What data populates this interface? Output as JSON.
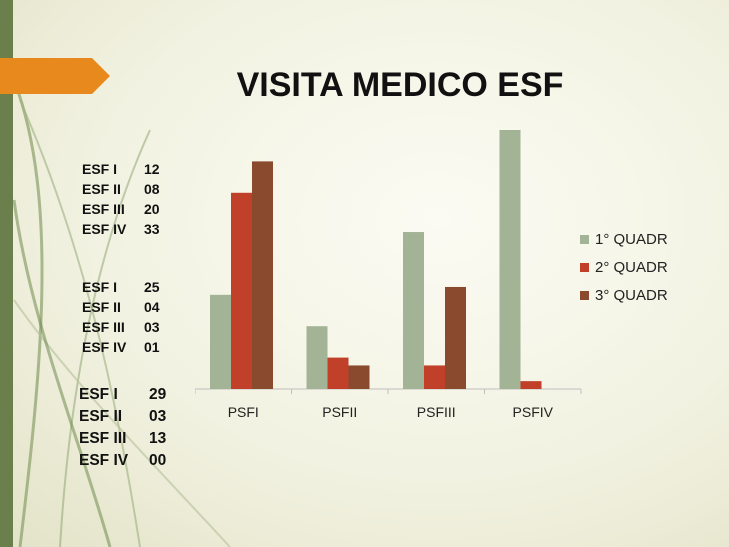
{
  "slide": {
    "title": "VISITA MEDICO ESF",
    "accent_color": "#e8891d",
    "bar_color": "#6b7f4d"
  },
  "stat_groups": [
    [
      {
        "label": "ESF I",
        "value": "12"
      },
      {
        "label": "ESF II",
        "value": "08"
      },
      {
        "label": "ESF III",
        "value": "20"
      },
      {
        "label": "ESF IV",
        "value": "33"
      }
    ],
    [
      {
        "label": "ESF I",
        "value": "25"
      },
      {
        "label": "ESF II",
        "value": "04"
      },
      {
        "label": "ESF III",
        "value": "03"
      },
      {
        "label": "ESF IV",
        "value": "01"
      }
    ],
    [
      {
        "label": "ESF I",
        "value": "29"
      },
      {
        "label": "ESF II",
        "value": "03"
      },
      {
        "label": "ESF III",
        "value": "13"
      },
      {
        "label": "ESF IV",
        "value": "00"
      }
    ]
  ],
  "chart_data": {
    "type": "bar",
    "title": "",
    "categories": [
      "PSFI",
      "PSFII",
      "PSFIII",
      "PSFIV"
    ],
    "series": [
      {
        "name": "1° QUADR",
        "color": "#a3b395",
        "values": [
          12,
          8,
          20,
          33
        ]
      },
      {
        "name": "2° QUADR",
        "color": "#c0402a",
        "values": [
          25,
          4,
          3,
          1
        ]
      },
      {
        "name": "3° QUADR",
        "color": "#8a4a2d",
        "values": [
          29,
          3,
          13,
          0
        ]
      }
    ],
    "ylim": [
      0,
      33
    ],
    "grid": false,
    "legend": "right"
  }
}
